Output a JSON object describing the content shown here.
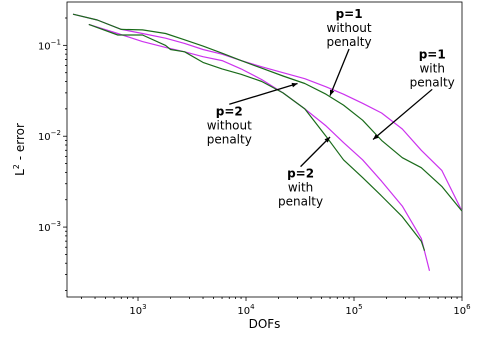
{
  "chart_data": {
    "type": "line",
    "title": "",
    "xlabel": "DOFs",
    "ylabel_main": "L",
    "ylabel_sup": "2",
    "ylabel_rest": " - error",
    "xscale": "log",
    "yscale": "log",
    "xlim": [
      220,
      1000000
    ],
    "ylim": [
      0.00017,
      0.3
    ],
    "grid": false,
    "legend": "none",
    "x_ticks": [
      {
        "value": 1000,
        "base": "10",
        "exp": "3"
      },
      {
        "value": 10000,
        "base": "10",
        "exp": "4"
      },
      {
        "value": 100000,
        "base": "10",
        "exp": "5"
      },
      {
        "value": 1000000,
        "base": "10",
        "exp": "6"
      }
    ],
    "y_ticks": [
      {
        "value": 0.1,
        "base": "10",
        "exp": "−1"
      },
      {
        "value": 0.01,
        "base": "10",
        "exp": "−2"
      },
      {
        "value": 0.001,
        "base": "10",
        "exp": "−3"
      }
    ],
    "series": [
      {
        "color": "#cc33ee",
        "points": [
          [
            250,
            0.22
          ],
          [
            420,
            0.19
          ],
          [
            700,
            0.15
          ],
          [
            1100,
            0.135
          ],
          [
            1800,
            0.12
          ],
          [
            2700,
            0.105
          ],
          [
            4000,
            0.09
          ],
          [
            6000,
            0.08
          ],
          [
            9000,
            0.068
          ],
          [
            14000,
            0.058
          ],
          [
            22000,
            0.05
          ],
          [
            35000,
            0.043
          ],
          [
            55000,
            0.035
          ],
          [
            80000,
            0.029
          ],
          [
            120000,
            0.023
          ],
          [
            180000,
            0.018
          ],
          [
            280000,
            0.012
          ],
          [
            420000,
            0.007
          ],
          [
            650000,
            0.0042
          ],
          [
            1000000,
            0.0015
          ]
        ]
      },
      {
        "color": "#1a6b1a",
        "points": [
          [
            250,
            0.22
          ],
          [
            420,
            0.19
          ],
          [
            700,
            0.15
          ],
          [
            1100,
            0.148
          ],
          [
            1800,
            0.135
          ],
          [
            2700,
            0.115
          ],
          [
            4000,
            0.098
          ],
          [
            6000,
            0.082
          ],
          [
            9000,
            0.068
          ],
          [
            14000,
            0.056
          ],
          [
            22000,
            0.046
          ],
          [
            35000,
            0.038
          ],
          [
            55000,
            0.029
          ],
          [
            80000,
            0.022
          ],
          [
            120000,
            0.015
          ],
          [
            180000,
            0.009
          ],
          [
            280000,
            0.0058
          ],
          [
            420000,
            0.0045
          ],
          [
            650000,
            0.0028
          ],
          [
            1000000,
            0.0015
          ]
        ]
      },
      {
        "color": "#cc33ee",
        "points": [
          [
            350,
            0.17
          ],
          [
            650,
            0.135
          ],
          [
            1100,
            0.11
          ],
          [
            1800,
            0.095
          ],
          [
            2700,
            0.085
          ],
          [
            4000,
            0.075
          ],
          [
            6000,
            0.068
          ],
          [
            9000,
            0.055
          ],
          [
            14000,
            0.042
          ],
          [
            22000,
            0.03
          ],
          [
            35000,
            0.02
          ],
          [
            55000,
            0.013
          ],
          [
            80000,
            0.0085
          ],
          [
            120000,
            0.0055
          ],
          [
            180000,
            0.0032
          ],
          [
            280000,
            0.0017
          ],
          [
            420000,
            0.00075
          ],
          [
            500000,
            0.00033
          ]
        ]
      },
      {
        "color": "#1a6b1a",
        "points": [
          [
            350,
            0.17
          ],
          [
            650,
            0.13
          ],
          [
            1100,
            0.13
          ],
          [
            1800,
            0.1
          ],
          [
            2000,
            0.09
          ],
          [
            2700,
            0.085
          ],
          [
            4000,
            0.065
          ],
          [
            6000,
            0.055
          ],
          [
            9000,
            0.048
          ],
          [
            14000,
            0.04
          ],
          [
            22000,
            0.03
          ],
          [
            35000,
            0.02
          ],
          [
            55000,
            0.01
          ],
          [
            80000,
            0.0055
          ],
          [
            120000,
            0.0035
          ],
          [
            180000,
            0.0022
          ],
          [
            280000,
            0.0013
          ],
          [
            420000,
            0.0007
          ],
          [
            450000,
            0.00055
          ]
        ]
      }
    ],
    "annotations": [
      {
        "bold": "p=1",
        "lines": [
          "without",
          "penalty"
        ],
        "x": 60000,
        "y": 0.028,
        "tx": 90000,
        "ty": 0.2
      },
      {
        "bold": "p=1",
        "lines": [
          "with",
          "penalty"
        ],
        "x": 150000,
        "y": 0.0092,
        "tx": 530000,
        "ty": 0.072
      },
      {
        "bold": "p=2",
        "lines": [
          "without",
          "penalty"
        ],
        "x": 30000,
        "y": 0.038,
        "tx": 7000,
        "ty": 0.017
      },
      {
        "bold": "p=2",
        "lines": [
          "with",
          "penalty"
        ],
        "x": 60000,
        "y": 0.0098,
        "tx": 32000,
        "ty": 0.0035
      }
    ]
  }
}
